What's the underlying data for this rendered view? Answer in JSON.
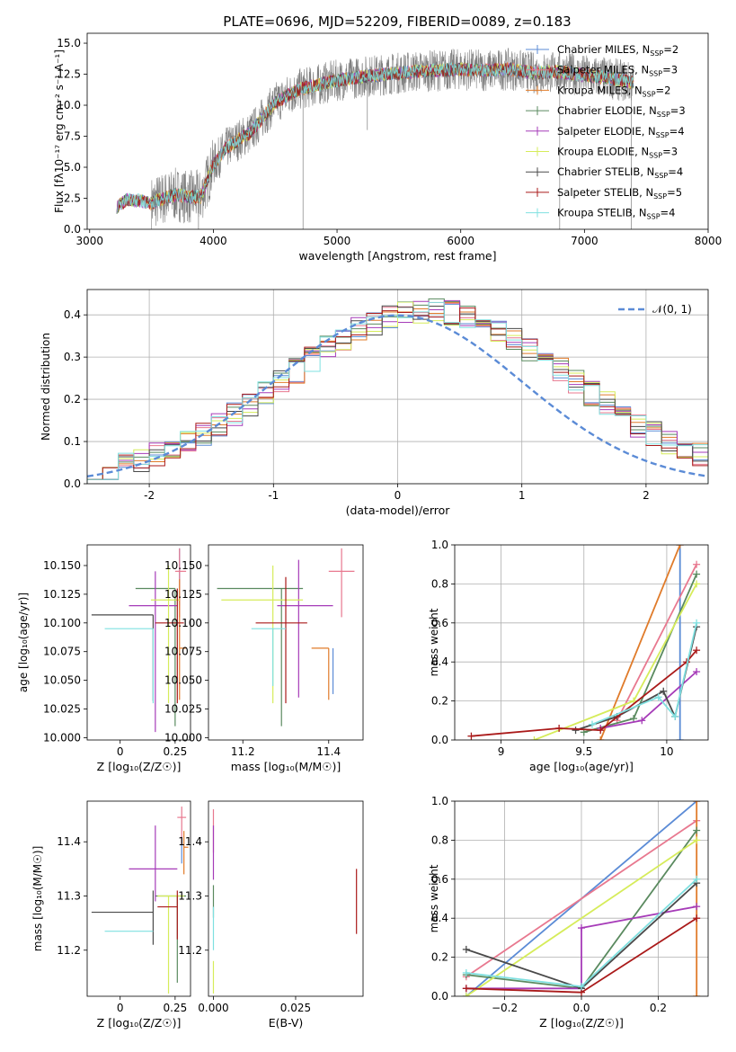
{
  "figure_title": "PLATE=0696, MJD=52209, FIBERID=0089, z=0.183",
  "colors": {
    "Chabrier MILES": "#5b8bd6",
    "Salpeter MILES": "#e8788f",
    "Kroupa MILES": "#e07b2a",
    "Chabrier ELODIE": "#5a8a5f",
    "Salpeter ELODIE": "#a63bb8",
    "Kroupa ELODIE": "#d6ec5a",
    "Chabrier STELIB": "#4a4a4a",
    "Salpeter STELIB": "#aa1a1a",
    "Kroupa STELIB": "#7fe0e0",
    "data": "#808080",
    "normal": "#5b8bd6"
  },
  "chart_data": [
    {
      "id": "spectrum",
      "type": "line",
      "xlabel": "wavelength [Angstrom, rest frame]",
      "ylabel": "Flux [fλ10⁻¹⁷ erg cm⁻² s⁻¹ A⁻¹]",
      "xlim": [
        2980,
        8000
      ],
      "ylim": [
        0,
        15.8
      ],
      "xticks": [
        3000,
        4000,
        5000,
        6000,
        7000,
        8000
      ],
      "yticks": [
        0.0,
        2.5,
        5.0,
        7.5,
        10.0,
        12.5,
        15.0
      ],
      "grid": false,
      "legend_position": "top-right",
      "legend": [
        {
          "label": "Chabrier MILES, N",
          "sub": "SSP",
          "suffix": "=2",
          "color_key": "Chabrier MILES"
        },
        {
          "label": "Salpeter MILES, N",
          "sub": "SSP",
          "suffix": "=3",
          "color_key": "Salpeter MILES"
        },
        {
          "label": "Kroupa MILES, N",
          "sub": "SSP",
          "suffix": "=2",
          "color_key": "Kroupa MILES"
        },
        {
          "label": "Chabrier ELODIE, N",
          "sub": "SSP",
          "suffix": "=3",
          "color_key": "Chabrier ELODIE"
        },
        {
          "label": "Salpeter ELODIE, N",
          "sub": "SSP",
          "suffix": "=4",
          "color_key": "Salpeter ELODIE"
        },
        {
          "label": "Kroupa ELODIE, N",
          "sub": "SSP",
          "suffix": "=3",
          "color_key": "Kroupa ELODIE"
        },
        {
          "label": "Chabrier STELIB, N",
          "sub": "SSP",
          "suffix": "=4",
          "color_key": "Chabrier STELIB"
        },
        {
          "label": "Salpeter STELIB, N",
          "sub": "SSP",
          "suffix": "=5",
          "color_key": "Salpeter STELIB"
        },
        {
          "label": "Kroupa STELIB, N",
          "sub": "SSP",
          "suffix": "=4",
          "color_key": "Kroupa STELIB"
        }
      ],
      "continuum": {
        "wavelength": [
          3220,
          3300,
          3400,
          3500,
          3600,
          3700,
          3800,
          3900,
          4000,
          4100,
          4200,
          4300,
          4400,
          4500,
          4600,
          4700,
          4800,
          4900,
          5000,
          5200,
          5400,
          5600,
          5800,
          6000,
          6200,
          6400,
          6600,
          6800,
          7000,
          7200,
          7400
        ],
        "flux": [
          1.8,
          2.4,
          2.3,
          2.1,
          2.5,
          2.8,
          2.6,
          2.6,
          5.2,
          6.5,
          7.2,
          7.8,
          9.0,
          10.2,
          10.8,
          11.3,
          11.5,
          11.8,
          12.0,
          12.3,
          12.5,
          12.7,
          12.8,
          12.9,
          12.8,
          12.9,
          12.6,
          12.7,
          12.4,
          12.2,
          11.8
        ]
      },
      "model_range_A": [
        3220,
        7400
      ],
      "data_range_A": [
        3500,
        7400
      ]
    },
    {
      "id": "residuals",
      "type": "histogram",
      "xlabel": "(data-model)/error",
      "ylabel": "Normed distribution",
      "xlim": [
        -2.5,
        2.5
      ],
      "ylim": [
        0,
        0.46
      ],
      "xticks": [
        -2,
        -1,
        0,
        1,
        2
      ],
      "yticks": [
        0.0,
        0.1,
        0.2,
        0.3,
        0.4
      ],
      "grid": true,
      "legend_position": "top-right",
      "reference_label": "𝒩(0, 1)",
      "bins": 40
    },
    {
      "id": "age_vs_Z",
      "type": "errorbar",
      "xlabel": "Z [log₁₀(Z/Z☉)]",
      "ylabel": "age  [log₁₀(age/yr)]",
      "xlim": [
        -0.15,
        0.32
      ],
      "ylim": [
        9.998,
        10.168
      ],
      "xticks": [
        0.0,
        0.25
      ],
      "yticks": [
        10.0,
        10.025,
        10.05,
        10.075,
        10.1,
        10.125,
        10.15
      ],
      "ytick_labels": [
        "10.000",
        "10.025",
        "10.050",
        "10.075",
        "10.100",
        "10.125",
        "10.150"
      ],
      "points": [
        {
          "k": "Chabrier MILES",
          "x": 0.27,
          "xerr": [
            0.0,
            0.0
          ],
          "y": 10.145,
          "yerr": [
            0.03,
            0.02
          ]
        },
        {
          "k": "Salpeter MILES",
          "x": 0.27,
          "xerr": [
            0.02,
            0.03
          ],
          "y": 10.145,
          "yerr": [
            0.04,
            0.02
          ]
        },
        {
          "k": "Kroupa MILES",
          "x": 0.27,
          "xerr": [
            0.0,
            0.03
          ],
          "y": 10.078,
          "yerr": [
            0.045,
            0.06
          ]
        },
        {
          "k": "Chabrier ELODIE",
          "x": 0.25,
          "xerr": [
            0.18,
            0.0
          ],
          "y": 10.13,
          "yerr": [
            0.12,
            0.0
          ]
        },
        {
          "k": "Salpeter ELODIE",
          "x": 0.16,
          "xerr": [
            0.12,
            0.1
          ],
          "y": 10.115,
          "yerr": [
            0.11,
            0.03
          ]
        },
        {
          "k": "Kroupa ELODIE",
          "x": 0.22,
          "xerr": [
            0.08,
            0.05
          ],
          "y": 10.12,
          "yerr": [
            0.09,
            0.03
          ]
        },
        {
          "k": "Chabrier STELIB",
          "x": 0.15,
          "xerr": [
            0.28,
            0.0
          ],
          "y": 10.107,
          "yerr": [
            0.075,
            0.0
          ]
        },
        {
          "k": "Salpeter STELIB",
          "x": 0.26,
          "xerr": [
            0.1,
            0.03
          ],
          "y": 10.1,
          "yerr": [
            0.07,
            0.03
          ]
        },
        {
          "k": "Kroupa STELIB",
          "x": 0.15,
          "xerr": [
            0.22,
            0.0
          ],
          "y": 10.095,
          "yerr": [
            0.065,
            0.0
          ]
        }
      ]
    },
    {
      "id": "age_vs_mass",
      "type": "errorbar",
      "xlabel": "mass [log₁₀(M/M☉)]",
      "xlim": [
        11.12,
        11.48
      ],
      "ylim": [
        9.998,
        10.168
      ],
      "xticks": [
        11.2,
        11.4
      ],
      "yticks": [
        10.0,
        10.025,
        10.05,
        10.075,
        10.1,
        10.125,
        10.15
      ],
      "ytick_labels": [
        "10.000",
        "10.025",
        "10.050",
        "10.075",
        "10.100",
        "10.125",
        "10.150"
      ],
      "points": [
        {
          "k": "Chabrier MILES",
          "x": 11.41,
          "xerr": [
            0.0,
            0.0
          ],
          "y": 10.078,
          "yerr": [
            0.04,
            0.0
          ]
        },
        {
          "k": "Salpeter MILES",
          "x": 11.43,
          "xerr": [
            0.03,
            0.03
          ],
          "y": 10.145,
          "yerr": [
            0.04,
            0.02
          ]
        },
        {
          "k": "Kroupa MILES",
          "x": 11.4,
          "xerr": [
            0.04,
            0.0
          ],
          "y": 10.078,
          "yerr": [
            0.045,
            0.0
          ]
        },
        {
          "k": "Chabrier ELODIE",
          "x": 11.29,
          "xerr": [
            0.15,
            0.05
          ],
          "y": 10.13,
          "yerr": [
            0.12,
            0.0
          ]
        },
        {
          "k": "Salpeter ELODIE",
          "x": 11.33,
          "xerr": [
            0.05,
            0.08
          ],
          "y": 10.115,
          "yerr": [
            0.08,
            0.04
          ]
        },
        {
          "k": "Kroupa ELODIE",
          "x": 11.27,
          "xerr": [
            0.12,
            0.07
          ],
          "y": 10.12,
          "yerr": [
            0.09,
            0.03
          ]
        },
        {
          "k": "Chabrier STELIB",
          "x": 11.3,
          "xerr": [
            0.0,
            0.0
          ],
          "y": 10.107,
          "yerr": [
            0.0,
            0.0
          ]
        },
        {
          "k": "Salpeter STELIB",
          "x": 11.3,
          "xerr": [
            0.07,
            0.05
          ],
          "y": 10.1,
          "yerr": [
            0.07,
            0.04
          ]
        },
        {
          "k": "Kroupa STELIB",
          "x": 11.27,
          "xerr": [
            0.05,
            0.03
          ],
          "y": 10.095,
          "yerr": [
            0.05,
            0.0
          ]
        }
      ]
    },
    {
      "id": "weight_vs_age",
      "type": "line",
      "xlabel": "age  [log₁₀(age/yr)]",
      "ylabel": "mass weight",
      "xlim": [
        8.72,
        10.25
      ],
      "ylim": [
        0,
        1
      ],
      "xticks": [
        9.0,
        9.5,
        10.0
      ],
      "yticks": [
        0.0,
        0.2,
        0.4,
        0.6,
        0.8,
        1.0
      ],
      "grid": true,
      "series": [
        {
          "k": "Chabrier MILES",
          "x": [
            10.08,
            10.08
          ],
          "y": [
            0.0,
            1.0
          ]
        },
        {
          "k": "Salpeter MILES",
          "x": [
            9.7,
            10.18
          ],
          "y": [
            0.1,
            0.9
          ]
        },
        {
          "k": "Kroupa MILES",
          "x": [
            9.6,
            10.08
          ],
          "y": [
            0.0,
            1.0
          ]
        },
        {
          "k": "Chabrier ELODIE",
          "x": [
            9.5,
            9.8,
            10.18
          ],
          "y": [
            0.04,
            0.11,
            0.85
          ]
        },
        {
          "k": "Salpeter ELODIE",
          "x": [
            9.6,
            9.85,
            10.18
          ],
          "y": [
            0.06,
            0.1,
            0.35
          ]
        },
        {
          "k": "Kroupa ELODIE",
          "x": [
            9.2,
            9.8,
            10.18
          ],
          "y": [
            0.0,
            0.2,
            0.8
          ]
        },
        {
          "k": "Chabrier STELIB",
          "x": [
            9.45,
            9.7,
            9.98,
            10.05,
            10.18
          ],
          "y": [
            0.05,
            0.12,
            0.25,
            0.12,
            0.58
          ]
        },
        {
          "k": "Salpeter STELIB",
          "x": [
            8.82,
            9.35,
            9.6,
            10.12,
            10.18
          ],
          "y": [
            0.02,
            0.06,
            0.05,
            0.4,
            0.46
          ]
        },
        {
          "k": "Kroupa STELIB",
          "x": [
            9.55,
            9.95,
            10.05,
            10.18
          ],
          "y": [
            0.08,
            0.22,
            0.12,
            0.6
          ]
        }
      ]
    },
    {
      "id": "mass_vs_Z",
      "type": "errorbar",
      "xlabel": "Z [log₁₀(Z/Z☉)]",
      "ylabel": "mass [log₁₀(M/M☉)]",
      "xlim": [
        -0.15,
        0.32
      ],
      "ylim": [
        11.115,
        11.475
      ],
      "xticks": [
        0.0,
        0.25
      ],
      "yticks": [
        11.2,
        11.3,
        11.4
      ],
      "points": [
        {
          "k": "Chabrier MILES",
          "x": 0.28,
          "xerr": [
            0.0,
            0.0
          ],
          "y": 11.41,
          "yerr": [
            0.05,
            0.0
          ]
        },
        {
          "k": "Salpeter MILES",
          "x": 0.28,
          "xerr": [
            0.02,
            0.02
          ],
          "y": 11.445,
          "yerr": [
            0.05,
            0.02
          ]
        },
        {
          "k": "Kroupa MILES",
          "x": 0.29,
          "xerr": [
            0.0,
            0.02
          ],
          "y": 11.39,
          "yerr": [
            0.05,
            0.03
          ]
        },
        {
          "k": "Chabrier ELODIE",
          "x": 0.26,
          "xerr": [
            0.1,
            0.04
          ],
          "y": 11.3,
          "yerr": [
            0.16,
            0.0
          ]
        },
        {
          "k": "Salpeter ELODIE",
          "x": 0.16,
          "xerr": [
            0.12,
            0.1
          ],
          "y": 11.35,
          "yerr": [
            0.06,
            0.08
          ]
        },
        {
          "k": "Kroupa ELODIE",
          "x": 0.22,
          "xerr": [
            0.05,
            0.07
          ],
          "y": 11.3,
          "yerr": [
            0.18,
            0.0
          ]
        },
        {
          "k": "Chabrier STELIB",
          "x": 0.15,
          "xerr": [
            0.28,
            0.0
          ],
          "y": 11.27,
          "yerr": [
            0.06,
            0.04
          ]
        },
        {
          "k": "Salpeter STELIB",
          "x": 0.26,
          "xerr": [
            0.09,
            0.0
          ],
          "y": 11.28,
          "yerr": [
            0.06,
            0.03
          ]
        },
        {
          "k": "Kroupa STELIB",
          "x": 0.15,
          "xerr": [
            0.22,
            0.0
          ],
          "y": 11.235,
          "yerr": [
            0.0,
            0.0
          ]
        }
      ]
    },
    {
      "id": "mass_vs_EBV",
      "type": "errorbar",
      "xlabel": "E(B-V)",
      "xlim": [
        -0.0015,
        0.0455
      ],
      "ylim": [
        11.115,
        11.475
      ],
      "xticks": [
        0.0,
        0.025
      ],
      "xtick_labels": [
        "0.000",
        "0.025"
      ],
      "yticks": [
        11.2,
        11.3,
        11.4
      ],
      "points": [
        {
          "k": "Salpeter MILES",
          "x": 0.0,
          "xerr": [
            0.0,
            0.0
          ],
          "y": 11.42,
          "yerr": [
            0.04,
            0.04
          ]
        },
        {
          "k": "Salpeter ELODIE",
          "x": 0.0,
          "xerr": [
            0.0,
            0.0
          ],
          "y": 11.38,
          "yerr": [
            0.05,
            0.05
          ]
        },
        {
          "k": "Chabrier ELODIE",
          "x": 0.0,
          "xerr": [
            0.0,
            0.0
          ],
          "y": 11.29,
          "yerr": [
            0.03,
            0.03
          ]
        },
        {
          "k": "Kroupa STELIB",
          "x": 0.0,
          "xerr": [
            0.0,
            0.0
          ],
          "y": 11.24,
          "yerr": [
            0.04,
            0.04
          ]
        },
        {
          "k": "Kroupa ELODIE",
          "x": 0.0,
          "xerr": [
            0.0,
            0.0
          ],
          "y": 11.15,
          "yerr": [
            0.03,
            0.03
          ]
        },
        {
          "k": "Salpeter STELIB",
          "x": 0.0435,
          "xerr": [
            0.0,
            0.0
          ],
          "y": 11.29,
          "yerr": [
            0.06,
            0.06
          ]
        }
      ]
    },
    {
      "id": "weight_vs_Z",
      "type": "line",
      "xlabel": "Z [log₁₀(Z/Z☉)]",
      "ylabel": "mass weight",
      "xlim": [
        -0.33,
        0.33
      ],
      "ylim": [
        0,
        1
      ],
      "xticks": [
        -0.2,
        0.0,
        0.2
      ],
      "xtick_labels": [
        "−0.2",
        "0.0",
        "0.2"
      ],
      "yticks": [
        0.0,
        0.2,
        0.4,
        0.6,
        0.8,
        1.0
      ],
      "grid": true,
      "series": [
        {
          "k": "Chabrier MILES",
          "x": [
            -0.3,
            0.3
          ],
          "y": [
            0.0,
            1.0
          ]
        },
        {
          "k": "Salpeter MILES",
          "x": [
            -0.3,
            0.3
          ],
          "y": [
            0.1,
            0.9
          ]
        },
        {
          "k": "Kroupa MILES",
          "x": [
            0.3,
            0.3
          ],
          "y": [
            0.0,
            1.0
          ]
        },
        {
          "k": "Chabrier ELODIE",
          "x": [
            -0.3,
            0.0,
            0.3
          ],
          "y": [
            0.11,
            0.04,
            0.85
          ]
        },
        {
          "k": "Salpeter ELODIE",
          "x": [
            -0.3,
            0.0,
            0.0,
            0.3
          ],
          "y": [
            0.04,
            0.04,
            0.35,
            0.46
          ]
        },
        {
          "k": "Kroupa ELODIE",
          "x": [
            -0.3,
            0.3
          ],
          "y": [
            0.0,
            0.8
          ]
        },
        {
          "k": "Chabrier STELIB",
          "x": [
            -0.3,
            0.0,
            0.3
          ],
          "y": [
            0.24,
            0.04,
            0.58
          ]
        },
        {
          "k": "Salpeter STELIB",
          "x": [
            -0.3,
            0.0,
            0.3
          ],
          "y": [
            0.04,
            0.02,
            0.4
          ]
        },
        {
          "k": "Kroupa STELIB",
          "x": [
            -0.3,
            0.0,
            0.3
          ],
          "y": [
            0.12,
            0.05,
            0.6
          ]
        }
      ]
    }
  ]
}
